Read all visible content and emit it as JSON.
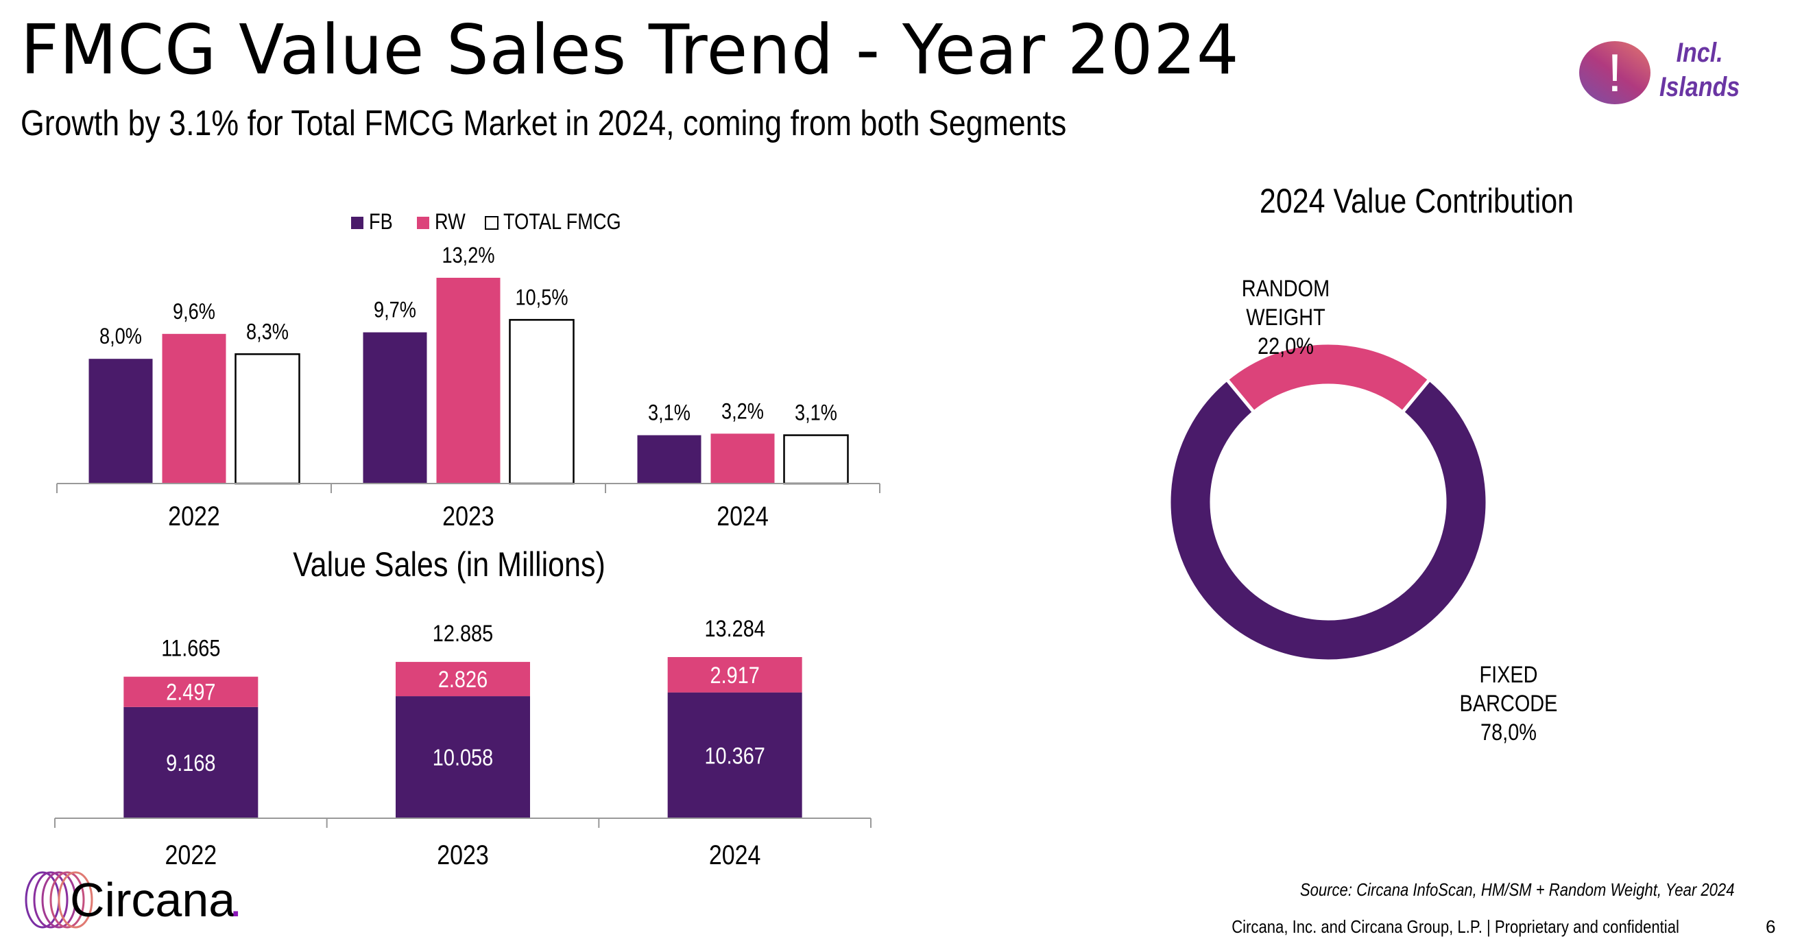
{
  "header": {
    "title": "FMCG Value Sales Trend - Year 2024",
    "subtitle": "Growth by 3.1% for Total FMCG Market in 2024, coming from both Segments"
  },
  "badge": {
    "icon": "exclamation-icon",
    "line1": "Incl.",
    "line2": "Islands",
    "text_color": "#6a35a3"
  },
  "colors": {
    "fb": "#4a1b6a",
    "rw": "#dc437a",
    "total_fill": "#ffffff",
    "total_stroke": "#000000"
  },
  "chart_data": [
    {
      "type": "bar",
      "title": "",
      "legend": [
        "FB",
        "RW",
        "TOTAL FMCG"
      ],
      "legend_position": "top",
      "categories": [
        "2022",
        "2023",
        "2024"
      ],
      "series": [
        {
          "name": "FB",
          "values": [
            8.0,
            9.7,
            3.1
          ],
          "labels": [
            "8,0%",
            "9,7%",
            "3,1%"
          ]
        },
        {
          "name": "RW",
          "values": [
            9.6,
            13.2,
            3.2
          ],
          "labels": [
            "9,6%",
            "13,2%",
            "3,2%"
          ]
        },
        {
          "name": "TOTAL FMCG",
          "values": [
            8.3,
            10.5,
            3.1
          ],
          "labels": [
            "8,3%",
            "10,5%",
            "3,1%"
          ]
        }
      ],
      "xlabel": "",
      "ylabel": "",
      "ylim": [
        0,
        14
      ],
      "grid": false
    },
    {
      "type": "bar",
      "stacked": true,
      "title": "Value Sales (in Millions)",
      "categories": [
        "2022",
        "2023",
        "2024"
      ],
      "series": [
        {
          "name": "FB",
          "values": [
            9168,
            10058,
            10367
          ],
          "labels": [
            "9.168",
            "10.058",
            "10.367"
          ]
        },
        {
          "name": "RW",
          "values": [
            2497,
            2826,
            2917
          ],
          "labels": [
            "2.497",
            "2.826",
            "2.917"
          ]
        }
      ],
      "totals": [
        11665,
        12885,
        13284
      ],
      "total_labels": [
        "11.665",
        "12.885",
        "13.284"
      ],
      "xlabel": "",
      "ylabel": "",
      "ylim": [
        0,
        14000
      ],
      "grid": false
    },
    {
      "type": "pie",
      "donut": true,
      "title": "2024  Value Contribution",
      "slices": [
        {
          "name": "RANDOM WEIGHT",
          "line1": "RANDOM",
          "line2": "WEIGHT",
          "value": 22.0,
          "label": "22,0%"
        },
        {
          "name": "FIXED BARCODE",
          "line1": "FIXED",
          "line2": "BARCODE",
          "value": 78.0,
          "label": "78,0%"
        }
      ]
    }
  ],
  "footer": {
    "source": "Source: Circana InfoScan, HM/SM + Random Weight, Year 2024",
    "copyright": "Circana, Inc. and Circana Group, L.P. |  Proprietary and confidential",
    "page": "6",
    "logo_text": "Circana",
    "logo_dot": "."
  }
}
